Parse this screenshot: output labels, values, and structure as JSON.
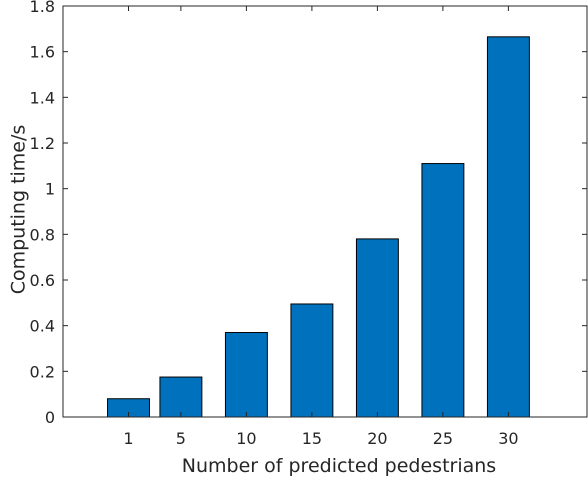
{
  "chart_data": {
    "type": "bar",
    "title": "",
    "xlabel": "Number of predicted pedestrians",
    "ylabel": "Computing time/s",
    "x": [
      1,
      5,
      10,
      15,
      20,
      25,
      30
    ],
    "values": [
      0.08,
      0.175,
      0.37,
      0.495,
      0.78,
      1.11,
      1.665
    ],
    "xlim": [
      -4,
      36
    ],
    "ylim": [
      0,
      1.8
    ],
    "yticks": [
      0,
      0.2,
      0.4,
      0.6,
      0.8,
      1,
      1.2,
      1.4,
      1.6,
      1.8
    ],
    "xticks": [
      1,
      5,
      10,
      15,
      20,
      25,
      30
    ],
    "bar_width": 3.2,
    "bar_color": "#0072BD",
    "bar_edge_color": "#000000",
    "grid": false
  }
}
